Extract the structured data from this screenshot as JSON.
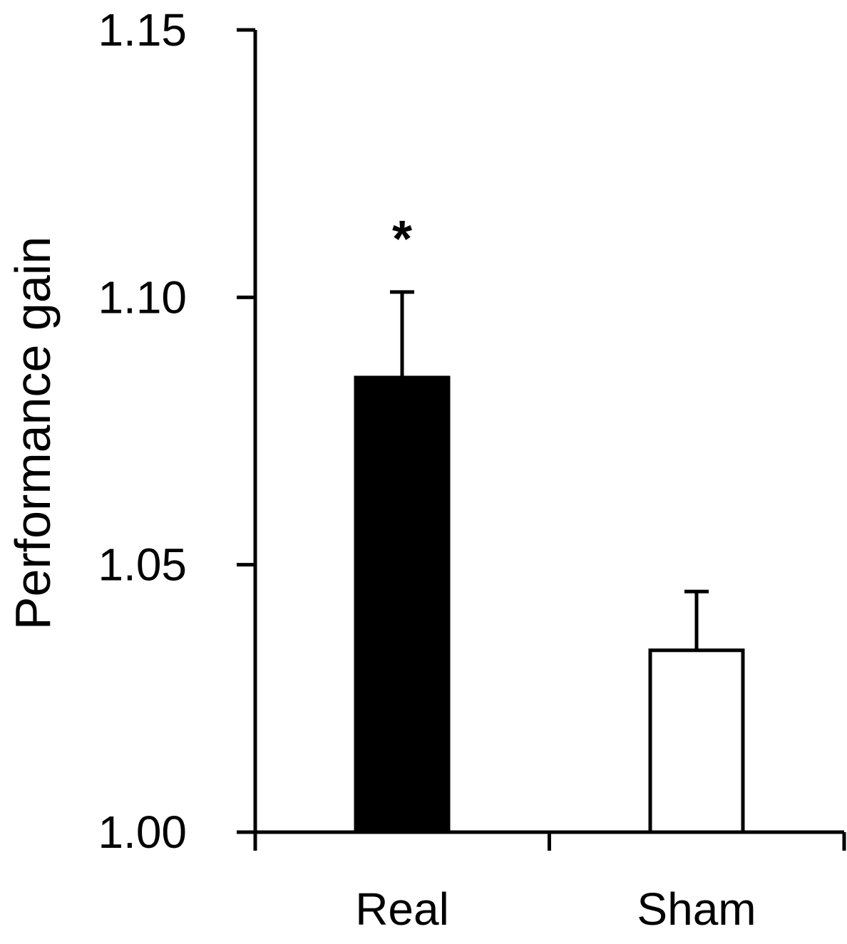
{
  "chart_data": {
    "type": "bar",
    "title": "",
    "xlabel": "",
    "ylabel": "Performance gain",
    "ylim": [
      1.0,
      1.15
    ],
    "yticks": [
      1.0,
      1.05,
      1.1,
      1.15
    ],
    "ytick_labels": [
      "1.00",
      "1.05",
      "1.10",
      "1.15"
    ],
    "categories": [
      "Real",
      "Sham"
    ],
    "values": [
      1.085,
      1.034
    ],
    "errors": [
      0.016,
      0.011
    ],
    "bar_colors": [
      "#000000",
      "#ffffff"
    ],
    "bar_edge_color": "#000000",
    "grid": false,
    "annotations": [
      {
        "category": "Real",
        "text": "*"
      }
    ]
  }
}
